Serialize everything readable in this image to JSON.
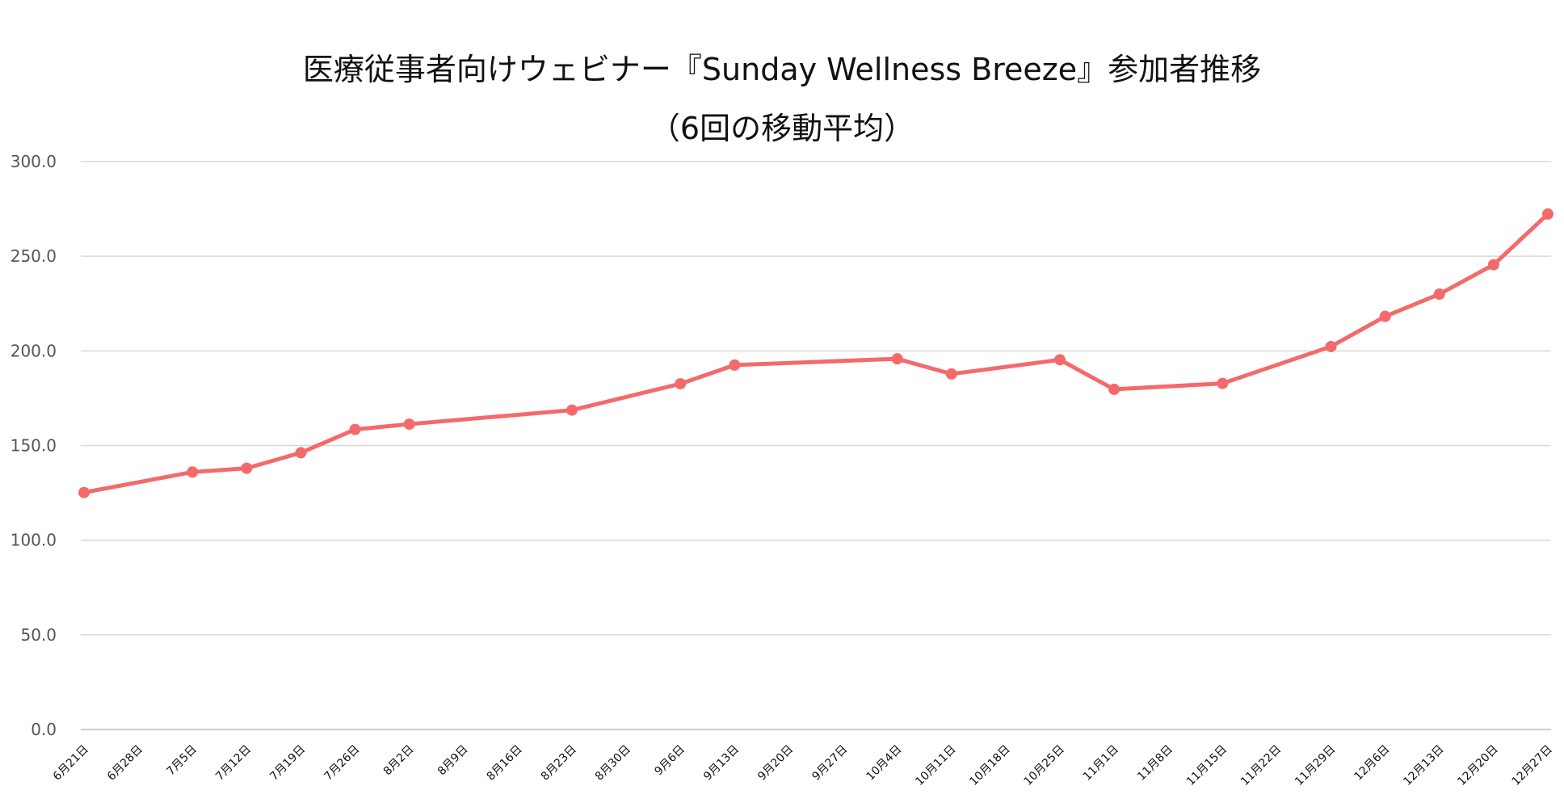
{
  "chart_data": {
    "type": "line",
    "title": "医療従事者向けウェビナー『Sunday Wellness Breeze』参加者推移",
    "subtitle": "（6回の移動平均）",
    "xlabel": "",
    "ylabel": "",
    "ylim": [
      0,
      300
    ],
    "yticks": [
      "0.0",
      "50.0",
      "100.0",
      "150.0",
      "200.0",
      "250.0",
      "300.0"
    ],
    "grid": true,
    "legend": "none",
    "line_color": "#F46A6A",
    "categories": [
      "6月21日",
      "6月28日",
      "7月5日",
      "7月12日",
      "7月19日",
      "7月26日",
      "8月2日",
      "8月9日",
      "8月16日",
      "8月23日",
      "8月30日",
      "9月6日",
      "9月13日",
      "9月20日",
      "9月27日",
      "10月4日",
      "10月11日",
      "10月18日",
      "10月25日",
      "11月1日",
      "11月8日",
      "11月15日",
      "11月22日",
      "11月29日",
      "12月6日",
      "12月13日",
      "12月20日",
      "12月27日"
    ],
    "series": [
      {
        "points": [
          {
            "x": "6月21日",
            "y": 125.2
          },
          {
            "x": "7月5日",
            "y": 136.0
          },
          {
            "x": "7月12日",
            "y": 138.0
          },
          {
            "x": "7月19日",
            "y": 146.2
          },
          {
            "x": "7月26日",
            "y": 158.5
          },
          {
            "x": "8月2日",
            "y": 161.3
          },
          {
            "x": "8月23日",
            "y": 168.7
          },
          {
            "x": "9月6日",
            "y": 182.6
          },
          {
            "x": "9月13日",
            "y": 192.5
          },
          {
            "x": "10月4日",
            "y": 195.8
          },
          {
            "x": "10月11日",
            "y": 187.8
          },
          {
            "x": "10月25日",
            "y": 195.3
          },
          {
            "x": "11月1日",
            "y": 179.7
          },
          {
            "x": "11月15日",
            "y": 182.8
          },
          {
            "x": "11月29日",
            "y": 202.3
          },
          {
            "x": "12月6日",
            "y": 218.2
          },
          {
            "x": "12月13日",
            "y": 230.0
          },
          {
            "x": "12月20日",
            "y": 245.5
          },
          {
            "x": "12月27日",
            "y": 272.3
          }
        ]
      }
    ]
  }
}
